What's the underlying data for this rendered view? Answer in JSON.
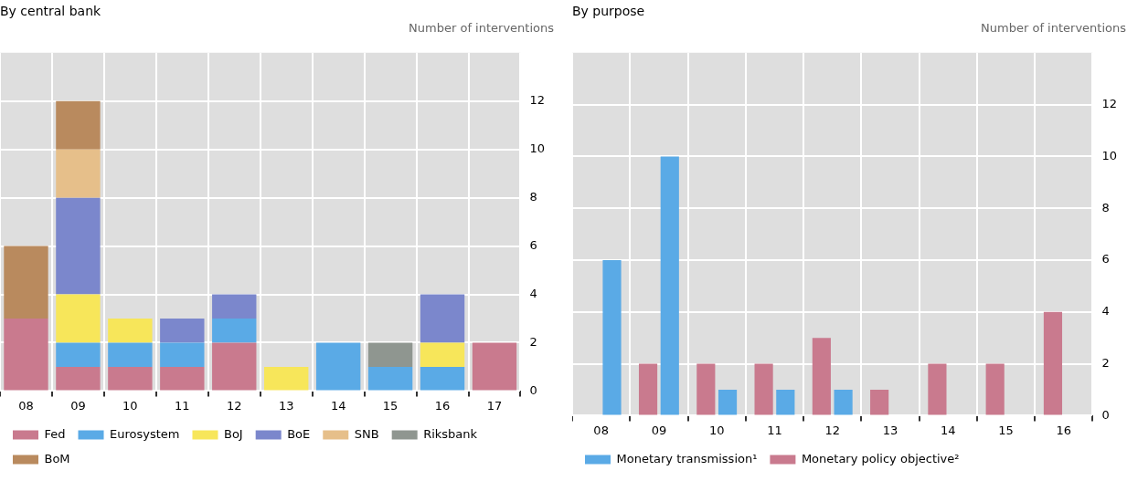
{
  "chart_data": [
    {
      "type": "bar",
      "title": "By central bank",
      "ylabel": "Number of interventions",
      "stacked": true,
      "categories": [
        "08",
        "09",
        "10",
        "11",
        "12",
        "13",
        "14",
        "15",
        "16",
        "17"
      ],
      "series": [
        {
          "name": "Fed",
          "color": "#c97a8e",
          "values": [
            3,
            1,
            1,
            1,
            2,
            0,
            0,
            0,
            0,
            2
          ]
        },
        {
          "name": "Eurosystem",
          "color": "#5aaae6",
          "values": [
            0,
            1,
            1,
            1,
            1,
            0,
            2,
            1,
            1,
            0
          ]
        },
        {
          "name": "BoJ",
          "color": "#f7e65a",
          "values": [
            0,
            2,
            1,
            0,
            0,
            1,
            0,
            0,
            1,
            0
          ]
        },
        {
          "name": "BoE",
          "color": "#7b87cc",
          "values": [
            0,
            4,
            0,
            1,
            1,
            0,
            0,
            0,
            2,
            0
          ]
        },
        {
          "name": "SNB",
          "color": "#e6bf8a",
          "values": [
            0,
            2,
            0,
            0,
            0,
            0,
            0,
            0,
            0,
            0
          ]
        },
        {
          "name": "Riksbank",
          "color": "#8f9690",
          "values": [
            0,
            0,
            0,
            0,
            0,
            0,
            0,
            1,
            0,
            0
          ]
        },
        {
          "name": "BoM",
          "color": "#b98a5e",
          "values": [
            3,
            2,
            0,
            0,
            0,
            0,
            0,
            0,
            0,
            0
          ]
        }
      ],
      "ylim": [
        0,
        14
      ],
      "yticks": [
        0,
        2,
        4,
        6,
        8,
        10,
        12
      ],
      "grid": true,
      "legend": "bottom"
    },
    {
      "type": "bar",
      "title": "By purpose",
      "ylabel": "Number of interventions",
      "categories": [
        "08",
        "09",
        "10",
        "11",
        "12",
        "13",
        "14",
        "15",
        "16"
      ],
      "series": [
        {
          "name": "Monetary policy objective²",
          "color": "#c97a8e",
          "values": [
            0,
            2,
            2,
            2,
            3,
            1,
            2,
            2,
            4
          ]
        },
        {
          "name": "Monetary transmission¹",
          "color": "#5aaae6",
          "values": [
            6,
            10,
            1,
            1,
            1,
            0,
            0,
            0,
            0
          ]
        }
      ],
      "ylim": [
        0,
        14
      ],
      "yticks": [
        0,
        2,
        4,
        6,
        8,
        10,
        12
      ],
      "grid": true,
      "legend": "bottom"
    }
  ]
}
